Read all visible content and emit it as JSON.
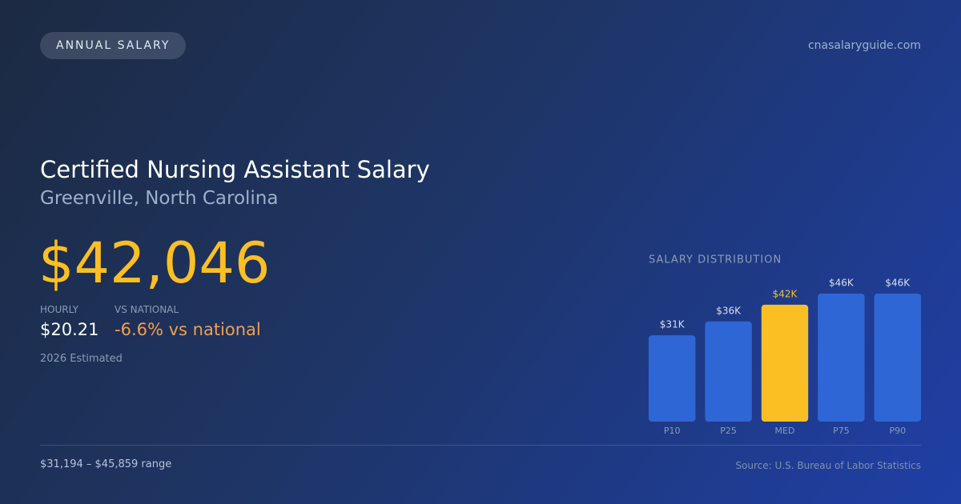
{
  "header": {
    "badge": "ANNUAL SALARY",
    "site": "cnasalaryguide.com"
  },
  "main": {
    "title": "Certified Nursing Assistant Salary",
    "subtitle": "Greenville, North Carolina",
    "salary": "$42,046",
    "hourly_label": "HOURLY",
    "hourly_value": "$20.21",
    "national_label": "VS NATIONAL",
    "national_value": "-6.6% vs national",
    "estimate": "2026 Estimated"
  },
  "footer": {
    "range": "$31,194 – $45,859 range",
    "source": "Source: U.S. Bureau of Labor Statistics"
  },
  "chart_data": {
    "type": "bar",
    "title": "SALARY DISTRIBUTION",
    "categories": [
      "P10",
      "P25",
      "MED",
      "P75",
      "P90"
    ],
    "values": [
      31,
      36,
      42,
      46,
      46
    ],
    "value_labels": [
      "$31K",
      "$36K",
      "$42K",
      "$46K",
      "$46K"
    ],
    "colors": [
      "#2f66d6",
      "#2f66d6",
      "#fbbf24",
      "#2f66d6",
      "#2f66d6"
    ],
    "label_colors": [
      "#d6deef",
      "#d6deef",
      "#fbbf24",
      "#d6deef",
      "#d6deef"
    ]
  }
}
